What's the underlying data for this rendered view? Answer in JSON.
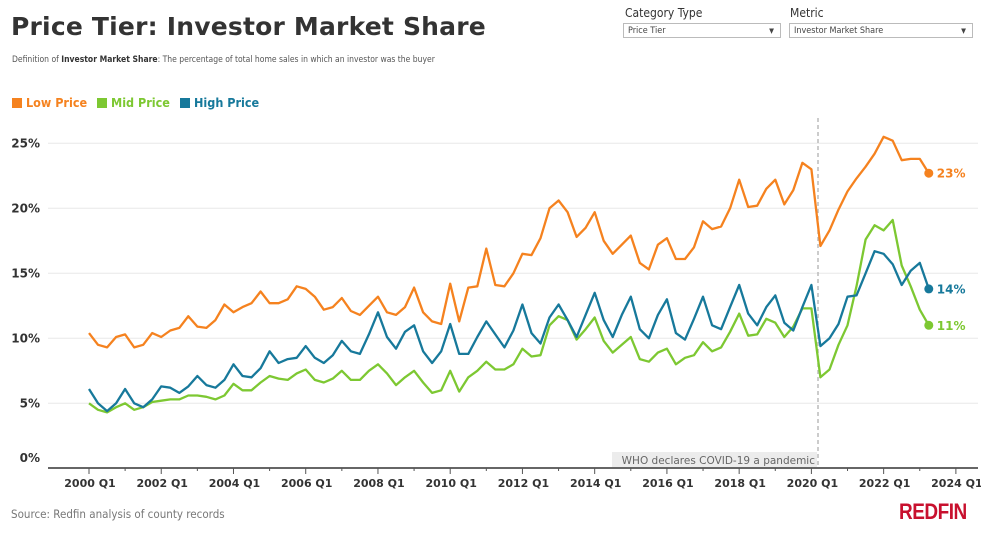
{
  "header": {
    "title": "Price Tier: Investor Market Share",
    "definition_prefix": "Definition of ",
    "definition_term": "Investor Market Share",
    "definition_text": ": The percentage of total home sales in which an investor was the buyer"
  },
  "controls": {
    "category_type": {
      "label": "Category Type",
      "value": "Price Tier"
    },
    "metric": {
      "label": "Metric",
      "value": "Investor Market Share"
    }
  },
  "footer": {
    "source": "Source: Redfin analysis of county records",
    "logo": "REDFIN"
  },
  "chart_data": {
    "type": "line",
    "title": "Price Tier: Investor Market Share",
    "xlabel": "",
    "ylabel": "",
    "ylim": [
      0,
      25
    ],
    "y_ticks": [
      "0%",
      "5%",
      "10%",
      "15%",
      "20%",
      "25%"
    ],
    "y_tick_values": [
      0,
      5,
      10,
      15,
      20,
      25
    ],
    "x_ticks": [
      "2000 Q1",
      "2002 Q1",
      "2004 Q1",
      "2006 Q1",
      "2008 Q1",
      "2010 Q1",
      "2012 Q1",
      "2014 Q1",
      "2016 Q1",
      "2018 Q1",
      "2020 Q1",
      "2022 Q1",
      "2024 Q1"
    ],
    "x_range": [
      "2000 Q1",
      "2024 Q1"
    ],
    "grid": true,
    "legend_position": "top-left",
    "annotation": {
      "text": "WHO declares COVID-19 a pandemic",
      "at": "2020 Q1"
    },
    "x": [
      "2000 Q1",
      "2000 Q2",
      "2000 Q3",
      "2000 Q4",
      "2001 Q1",
      "2001 Q2",
      "2001 Q3",
      "2001 Q4",
      "2002 Q1",
      "2002 Q2",
      "2002 Q3",
      "2002 Q4",
      "2003 Q1",
      "2003 Q2",
      "2003 Q3",
      "2003 Q4",
      "2004 Q1",
      "2004 Q2",
      "2004 Q3",
      "2004 Q4",
      "2005 Q1",
      "2005 Q2",
      "2005 Q3",
      "2005 Q4",
      "2006 Q1",
      "2006 Q2",
      "2006 Q3",
      "2006 Q4",
      "2007 Q1",
      "2007 Q2",
      "2007 Q3",
      "2007 Q4",
      "2008 Q1",
      "2008 Q2",
      "2008 Q3",
      "2008 Q4",
      "2009 Q1",
      "2009 Q2",
      "2009 Q3",
      "2009 Q4",
      "2010 Q1",
      "2010 Q2",
      "2010 Q3",
      "2010 Q4",
      "2011 Q1",
      "2011 Q2",
      "2011 Q3",
      "2011 Q4",
      "2012 Q1",
      "2012 Q2",
      "2012 Q3",
      "2012 Q4",
      "2013 Q1",
      "2013 Q2",
      "2013 Q3",
      "2013 Q4",
      "2014 Q1",
      "2014 Q2",
      "2014 Q3",
      "2014 Q4",
      "2015 Q1",
      "2015 Q2",
      "2015 Q3",
      "2015 Q4",
      "2016 Q1",
      "2016 Q2",
      "2016 Q3",
      "2016 Q4",
      "2017 Q1",
      "2017 Q2",
      "2017 Q3",
      "2017 Q4",
      "2018 Q1",
      "2018 Q2",
      "2018 Q3",
      "2018 Q4",
      "2019 Q1",
      "2019 Q2",
      "2019 Q3",
      "2019 Q4",
      "2020 Q1",
      "2020 Q2",
      "2020 Q3",
      "2020 Q4",
      "2021 Q1",
      "2021 Q2",
      "2021 Q3",
      "2021 Q4",
      "2022 Q1",
      "2022 Q2",
      "2022 Q3",
      "2022 Q4",
      "2023 Q1",
      "2023 Q2"
    ],
    "series": [
      {
        "name": "Low Price",
        "color": "#f5821f",
        "end_label": "23%",
        "values": [
          10.4,
          9.5,
          9.3,
          10.1,
          10.3,
          9.3,
          9.5,
          10.4,
          10.1,
          10.6,
          10.8,
          11.7,
          10.9,
          10.8,
          11.4,
          12.6,
          12.0,
          12.4,
          12.7,
          13.6,
          12.7,
          12.7,
          13.0,
          14.0,
          13.8,
          13.2,
          12.2,
          12.4,
          13.1,
          12.1,
          11.8,
          12.5,
          13.2,
          12.0,
          11.8,
          12.4,
          13.9,
          12.0,
          11.3,
          11.1,
          14.2,
          11.3,
          13.9,
          14.0,
          16.9,
          14.1,
          14.0,
          15.0,
          16.5,
          16.4,
          17.7,
          20.0,
          20.6,
          19.7,
          17.8,
          18.5,
          19.7,
          17.5,
          16.5,
          17.2,
          17.9,
          15.8,
          15.3,
          17.2,
          17.7,
          16.1,
          16.1,
          17.0,
          19.0,
          18.4,
          18.6,
          20.0,
          22.2,
          20.1,
          20.2,
          21.5,
          22.2,
          20.3,
          21.4,
          23.5,
          23.0,
          17.1,
          18.3,
          19.9,
          21.3,
          22.3,
          23.2,
          24.2,
          25.5,
          25.2,
          23.7,
          23.8,
          23.8,
          22.7
        ]
      },
      {
        "name": "Mid Price",
        "color": "#7dc832",
        "end_label": "11%",
        "values": [
          5.0,
          4.5,
          4.3,
          4.7,
          5.0,
          4.5,
          4.7,
          5.1,
          5.2,
          5.3,
          5.3,
          5.6,
          5.6,
          5.5,
          5.3,
          5.6,
          6.5,
          6.0,
          6.0,
          6.6,
          7.1,
          6.9,
          6.8,
          7.3,
          7.6,
          6.8,
          6.6,
          6.9,
          7.5,
          6.8,
          6.8,
          7.5,
          8.0,
          7.3,
          6.4,
          7.0,
          7.5,
          6.6,
          5.8,
          6.0,
          7.5,
          5.9,
          7.0,
          7.5,
          8.2,
          7.6,
          7.6,
          8.0,
          9.2,
          8.6,
          8.7,
          11.0,
          11.7,
          11.4,
          9.9,
          10.7,
          11.6,
          9.8,
          8.9,
          9.5,
          10.1,
          8.4,
          8.2,
          8.9,
          9.2,
          8.0,
          8.5,
          8.7,
          9.7,
          9.0,
          9.3,
          10.5,
          11.9,
          10.2,
          10.3,
          11.5,
          11.2,
          10.1,
          10.9,
          12.3,
          12.3,
          7.0,
          7.6,
          9.5,
          11.0,
          14.0,
          17.6,
          18.7,
          18.3,
          19.1,
          15.6,
          14.0,
          12.2,
          11.0
        ]
      },
      {
        "name": "High Price",
        "color": "#17799b",
        "end_label": "14%",
        "values": [
          6.1,
          5.0,
          4.4,
          5.0,
          6.1,
          5.0,
          4.7,
          5.3,
          6.3,
          6.2,
          5.8,
          6.3,
          7.1,
          6.4,
          6.2,
          6.8,
          8.0,
          7.1,
          7.0,
          7.7,
          9.0,
          8.1,
          8.4,
          8.5,
          9.4,
          8.5,
          8.1,
          8.7,
          9.8,
          9.0,
          8.8,
          10.3,
          12.0,
          10.1,
          9.2,
          10.5,
          11.0,
          9.0,
          8.1,
          9.0,
          11.1,
          8.8,
          8.8,
          10.1,
          11.3,
          10.3,
          9.3,
          10.6,
          12.6,
          10.4,
          9.6,
          11.6,
          12.6,
          11.4,
          10.1,
          11.8,
          13.5,
          11.4,
          10.1,
          11.8,
          13.2,
          10.7,
          10.0,
          11.8,
          13.0,
          10.4,
          9.9,
          11.5,
          13.2,
          11.0,
          10.7,
          12.4,
          14.1,
          11.9,
          11.0,
          12.4,
          13.3,
          11.2,
          10.6,
          12.4,
          14.1,
          9.4,
          10.0,
          11.1,
          13.2,
          13.3,
          15.0,
          16.7,
          16.5,
          15.7,
          14.1,
          15.2,
          15.8,
          13.8
        ]
      }
    ]
  }
}
